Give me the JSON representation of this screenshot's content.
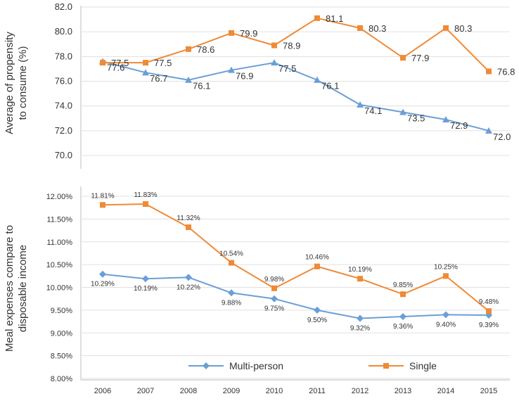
{
  "colors": {
    "multi": "#6a9fd6",
    "single": "#ef8a36",
    "grid": "#e0e0e0",
    "axis": "#bdbdbd",
    "text": "#333333"
  },
  "chart_data": [
    {
      "type": "line",
      "ylabel": [
        "Average of propensity",
        "to consume (%)"
      ],
      "categories": [
        "2006",
        "2007",
        "2008",
        "2009",
        "2010",
        "2011",
        "2012",
        "2013",
        "2014",
        "2015"
      ],
      "ylim": [
        70,
        82
      ],
      "yticks": [
        "70.0",
        "72.0",
        "74.0",
        "76.0",
        "78.0",
        "80.0",
        "82.0"
      ],
      "series": [
        {
          "name": "Multi-person",
          "marker": "triangle",
          "values": [
            77.6,
            76.7,
            76.1,
            76.9,
            77.5,
            76.1,
            74.1,
            73.5,
            72.9,
            72.0
          ],
          "labels": [
            "77.6",
            "76.7",
            "76.1",
            "76.9",
            "77.5",
            "76.1",
            "74.1",
            "73.5",
            "72.9",
            "72.0"
          ]
        },
        {
          "name": "Single",
          "marker": "square",
          "values": [
            77.5,
            77.5,
            78.6,
            79.9,
            78.9,
            81.1,
            80.3,
            77.9,
            80.3,
            76.8
          ],
          "labels": [
            "77.5",
            "77.5",
            "78.6",
            "79.9",
            "78.9",
            "81.1",
            "80.3",
            "77.9",
            "80.3",
            "76.8"
          ]
        }
      ]
    },
    {
      "type": "line",
      "ylabel": [
        "Meal expenses compare to",
        "disposable income"
      ],
      "categories": [
        "2006",
        "2007",
        "2008",
        "2009",
        "2010",
        "2011",
        "2012",
        "2013",
        "2014",
        "2015"
      ],
      "ylim": [
        8.0,
        12.0
      ],
      "yticks": [
        "8.00%",
        "8.50%",
        "9.00%",
        "9.50%",
        "10.00%",
        "10.50%",
        "11.00%",
        "11.50%",
        "12.00%"
      ],
      "series": [
        {
          "name": "Multi-person",
          "marker": "diamond",
          "values": [
            10.29,
            10.19,
            10.22,
            9.88,
            9.75,
            9.5,
            9.32,
            9.36,
            9.4,
            9.39
          ],
          "labels": [
            "10.29%",
            "10.19%",
            "10.22%",
            "9.88%",
            "9.75%",
            "9.50%",
            "9.32%",
            "9.36%",
            "9.40%",
            "9.39%"
          ]
        },
        {
          "name": "Single",
          "marker": "square",
          "values": [
            11.81,
            11.83,
            11.32,
            10.54,
            9.98,
            10.46,
            10.19,
            9.85,
            10.25,
            9.48
          ],
          "labels": [
            "11.81%",
            "11.83%",
            "11.32%",
            "10.54%",
            "9.98%",
            "10.46%",
            "10.19%",
            "9.85%",
            "10.25%",
            "9.48%"
          ]
        }
      ],
      "legend": [
        "Multi-person",
        "Single"
      ]
    }
  ]
}
